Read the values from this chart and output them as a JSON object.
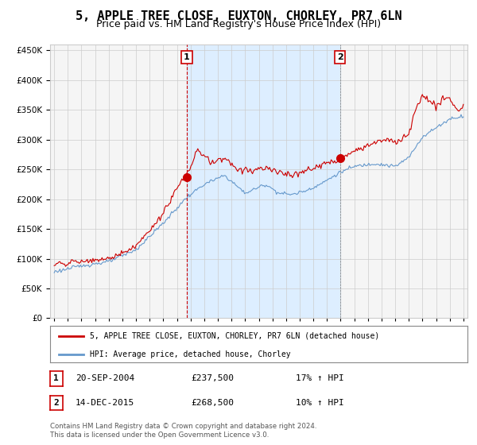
{
  "title": "5, APPLE TREE CLOSE, EUXTON, CHORLEY, PR7 6LN",
  "subtitle": "Price paid vs. HM Land Registry's House Price Index (HPI)",
  "title_fontsize": 11,
  "subtitle_fontsize": 9,
  "start_year": 1995,
  "end_year": 2025,
  "red_line_color": "#cc0000",
  "blue_line_color": "#6699cc",
  "shading_color": "#ddeeff",
  "marker1_date_year": 2004.72,
  "marker1_value": 237500,
  "marker2_date_year": 2015.95,
  "marker2_value": 268500,
  "transaction1_date": "20-SEP-2004",
  "transaction1_price": "£237,500",
  "transaction1_hpi": "17% ↑ HPI",
  "transaction2_date": "14-DEC-2015",
  "transaction2_price": "£268,500",
  "transaction2_hpi": "10% ↑ HPI",
  "legend_label_red": "5, APPLE TREE CLOSE, EUXTON, CHORLEY, PR7 6LN (detached house)",
  "legend_label_blue": "HPI: Average price, detached house, Chorley",
  "footer_text": "Contains HM Land Registry data © Crown copyright and database right 2024.\nThis data is licensed under the Open Government Licence v3.0.",
  "background_color": "#ffffff",
  "grid_color": "#cccccc",
  "axis_bg_color": "#f5f5f5",
  "hpi_keypoints": [
    [
      1995.0,
      78000
    ],
    [
      1997.0,
      88000
    ],
    [
      1999.0,
      95000
    ],
    [
      2001.0,
      115000
    ],
    [
      2003.0,
      160000
    ],
    [
      2004.72,
      203000
    ],
    [
      2006.0,
      225000
    ],
    [
      2007.5,
      240000
    ],
    [
      2009.0,
      210000
    ],
    [
      2009.5,
      215000
    ],
    [
      2010.5,
      225000
    ],
    [
      2011.5,
      210000
    ],
    [
      2012.5,
      208000
    ],
    [
      2013.5,
      215000
    ],
    [
      2014.5,
      225000
    ],
    [
      2015.95,
      245000
    ],
    [
      2017.0,
      255000
    ],
    [
      2018.5,
      260000
    ],
    [
      2020.0,
      255000
    ],
    [
      2021.0,
      270000
    ],
    [
      2022.0,
      305000
    ],
    [
      2023.0,
      320000
    ],
    [
      2024.0,
      335000
    ],
    [
      2025.0,
      340000
    ]
  ],
  "prop_keypoints": [
    [
      1995.0,
      90000
    ],
    [
      1997.0,
      95000
    ],
    [
      1999.0,
      100000
    ],
    [
      2001.0,
      120000
    ],
    [
      2003.0,
      175000
    ],
    [
      2004.0,
      220000
    ],
    [
      2004.72,
      237500
    ],
    [
      2005.5,
      285000
    ],
    [
      2006.5,
      260000
    ],
    [
      2007.5,
      270000
    ],
    [
      2008.5,
      250000
    ],
    [
      2009.5,
      248000
    ],
    [
      2010.5,
      255000
    ],
    [
      2011.5,
      245000
    ],
    [
      2012.5,
      240000
    ],
    [
      2013.5,
      248000
    ],
    [
      2014.5,
      255000
    ],
    [
      2015.95,
      268500
    ],
    [
      2016.5,
      275000
    ],
    [
      2017.5,
      285000
    ],
    [
      2018.5,
      295000
    ],
    [
      2019.5,
      300000
    ],
    [
      2020.0,
      295000
    ],
    [
      2021.0,
      310000
    ],
    [
      2021.5,
      350000
    ],
    [
      2022.0,
      375000
    ],
    [
      2022.5,
      365000
    ],
    [
      2023.0,
      355000
    ],
    [
      2023.5,
      370000
    ],
    [
      2024.0,
      370000
    ],
    [
      2024.5,
      350000
    ],
    [
      2025.0,
      355000
    ]
  ]
}
